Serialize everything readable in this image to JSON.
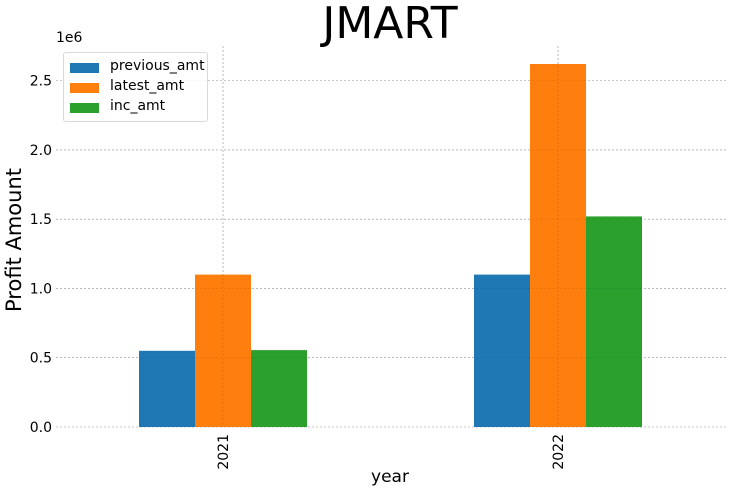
{
  "chart_data": {
    "type": "bar",
    "title": "JMART",
    "xlabel": "year",
    "ylabel": "Profit Amount",
    "y_offset_label": "1e6",
    "categories": [
      "2021",
      "2022"
    ],
    "series": [
      {
        "name": "previous_amt",
        "color": "#1f77b4",
        "values": [
          550000,
          1100000
        ]
      },
      {
        "name": "latest_amt",
        "color": "#ff7f0e",
        "values": [
          1100000,
          2620000
        ]
      },
      {
        "name": "inc_amt",
        "color": "#2ca02c",
        "values": [
          555000,
          1520000
        ]
      }
    ],
    "ylim": [
      0,
      2750000
    ],
    "yticks": [
      0,
      500000,
      1000000,
      1500000,
      2000000,
      2500000
    ],
    "ytick_labels": [
      "0.0",
      "0.5",
      "1.0",
      "1.5",
      "2.0",
      "2.5"
    ],
    "grid": true,
    "legend_position": "top-left"
  }
}
